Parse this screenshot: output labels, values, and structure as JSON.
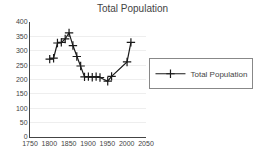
{
  "chart_data": {
    "type": "line",
    "title": "Total Population",
    "x": [
      1801,
      1811,
      1821,
      1831,
      1841,
      1851,
      1861,
      1871,
      1881,
      1891,
      1901,
      1911,
      1921,
      1931,
      1951,
      1961,
      2001,
      2011
    ],
    "series": [
      {
        "name": "Total Population",
        "color": "#1a1a1a",
        "marker": "plus",
        "values": [
          271,
          274,
          327,
          329,
          341,
          362,
          318,
          280,
          247,
          209,
          210,
          208,
          210,
          207,
          194,
          211,
          261,
          329
        ]
      }
    ],
    "xlim": [
      1750,
      2050
    ],
    "xticks": [
      1750,
      1800,
      1850,
      1900,
      1950,
      2000,
      2050
    ],
    "ylim": [
      0,
      400
    ],
    "yticks": [
      0,
      50,
      100,
      150,
      200,
      250,
      300,
      350,
      400
    ],
    "grid": true,
    "legend": "right"
  }
}
